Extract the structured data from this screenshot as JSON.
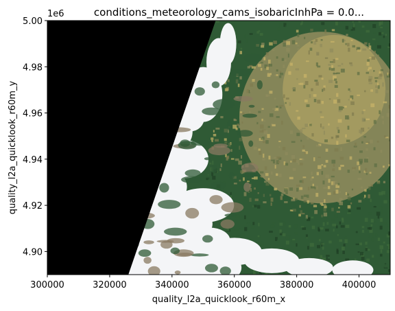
{
  "chart_data": {
    "type": "heatmap",
    "title": "conditions_meteorology_cams_isobaricInhPa = 0.0...",
    "xlabel": "quality_l2a_quicklook_r60m_x",
    "ylabel": "quality_l2a_quicklook_r60m_y",
    "y_offset_label": "1e6",
    "xlim": [
      300000,
      410000
    ],
    "ylim": [
      4890000,
      5000000
    ],
    "x_ticks": [
      300000,
      320000,
      340000,
      360000,
      380000,
      400000
    ],
    "x_tick_labels": [
      "300000",
      "320000",
      "340000",
      "360000",
      "380000",
      "400000"
    ],
    "y_ticks": [
      4900000,
      4920000,
      4940000,
      4960000,
      4980000,
      5000000
    ],
    "y_tick_labels": [
      "4.90",
      "4.92",
      "4.94",
      "4.96",
      "4.98",
      "5.00"
    ],
    "image_content": "true-color satellite quicklook: black no-data wedge on the left, white cloud band, green forested mountains and tan agricultural plain on the right",
    "nodata_boundary": [
      [
        300000,
        4890000
      ],
      [
        326000,
        4890000
      ],
      [
        354000,
        5000000
      ],
      [
        300000,
        5000000
      ]
    ],
    "grid": false,
    "colors": {
      "nodata": "#000000",
      "cloud": "#f4f5f7",
      "forest": "#2f5a35",
      "forest_dark": "#1f3f25",
      "plain": "#8e8a5c",
      "field_yellow": "#c9b46a",
      "shadow": "#1a2a1c"
    }
  }
}
